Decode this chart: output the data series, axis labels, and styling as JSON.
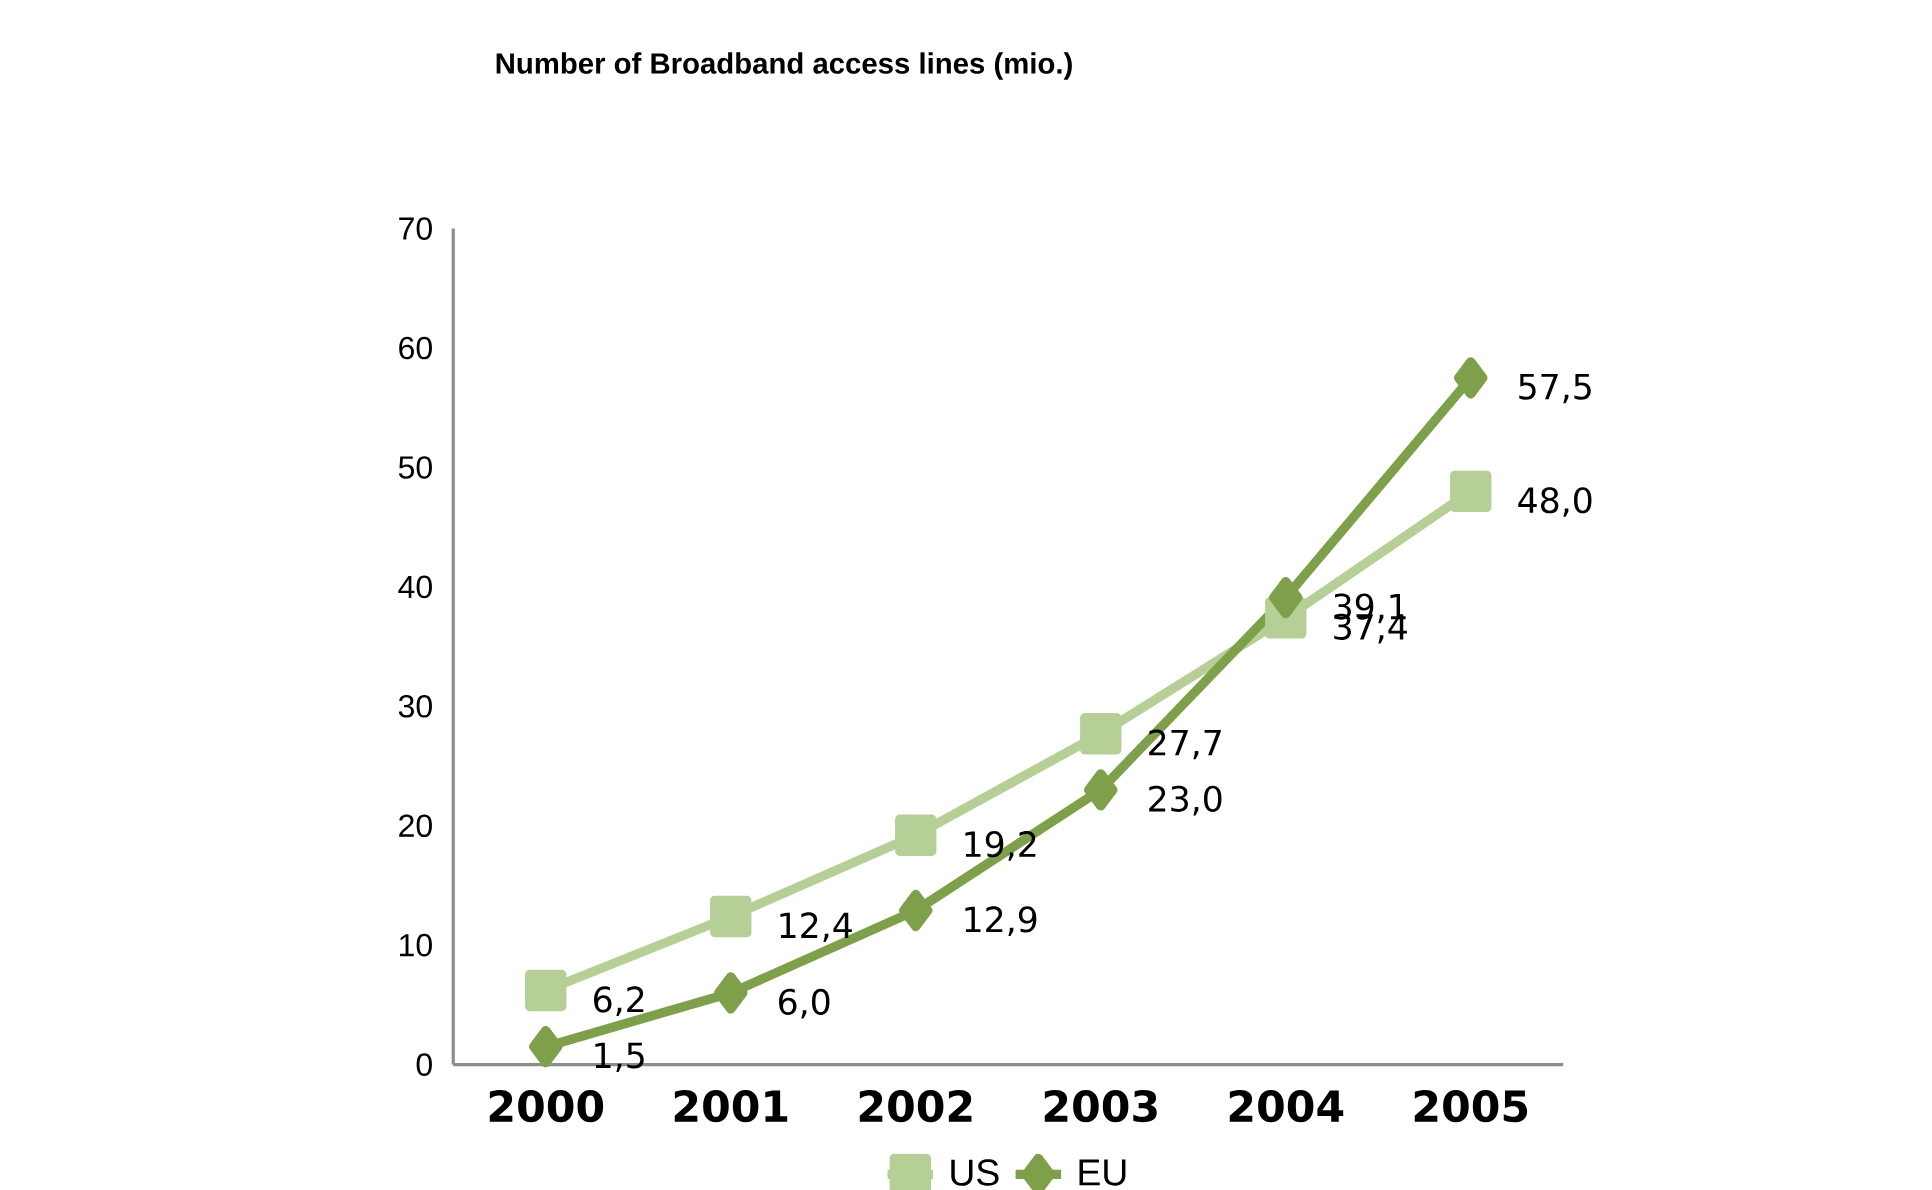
{
  "chart_data": {
    "type": "line",
    "title": "Number of Broadband access lines (mio.)",
    "categories": [
      "2000",
      "2001",
      "2002",
      "2003",
      "2004",
      "2005"
    ],
    "series": [
      {
        "name": "US",
        "color": "#b5cf96",
        "marker": "square",
        "values": [
          6.2,
          12.4,
          19.2,
          27.7,
          37.4,
          48.0
        ],
        "value_labels": [
          "6,2",
          "12,4",
          "19,2",
          "27,7",
          "37,4",
          "48,0"
        ]
      },
      {
        "name": "EU",
        "color": "#7fa04a",
        "marker": "diamond",
        "values": [
          1.5,
          6.0,
          12.9,
          23.0,
          39.1,
          57.5
        ],
        "value_labels": [
          "1,5",
          "6,0",
          "12,9",
          "23,0",
          "39,1",
          "57,5"
        ]
      }
    ],
    "ylim": [
      0,
      70
    ],
    "yticks": [
      0,
      10,
      20,
      30,
      40,
      50,
      60,
      70
    ],
    "grid": false,
    "legend": "bottom",
    "line_style": "solid"
  }
}
